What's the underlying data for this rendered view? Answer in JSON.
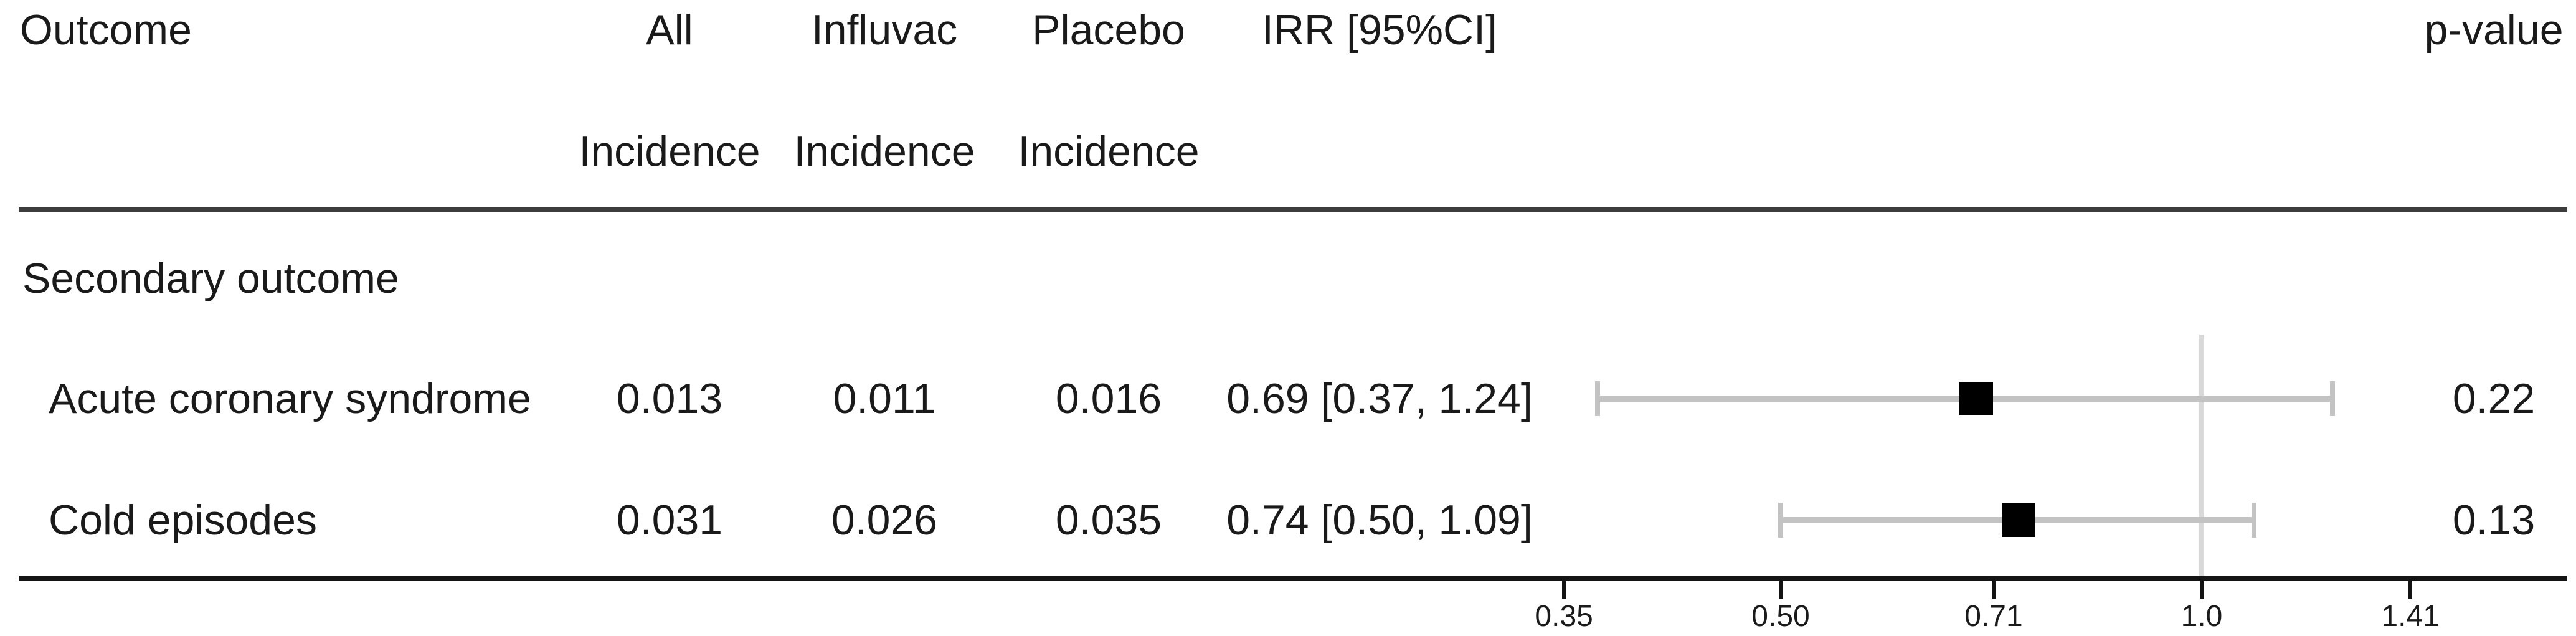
{
  "header": {
    "col_outcome": "Outcome",
    "col_all": "All",
    "col_influvac": "Influvac",
    "col_placebo": "Placebo",
    "col_incidence": "Incidence",
    "col_irr": "IRR [95%CI]",
    "col_pvalue": "p-value"
  },
  "group_label": "Secondary outcome",
  "rows": [
    {
      "outcome": "Acute coronary syndrome",
      "all_incidence": "0.013",
      "influvac_incidence": "0.011",
      "placebo_incidence": "0.016",
      "irr_label": "0.69 [0.37, 1.24]",
      "p_value": "0.22"
    },
    {
      "outcome": "Cold episodes",
      "all_incidence": "0.031",
      "influvac_incidence": "0.026",
      "placebo_incidence": "0.035",
      "irr_label": "0.74 [0.50, 1.09]",
      "p_value": "0.13"
    }
  ],
  "chart_data": {
    "type": "scatter",
    "subtype": "forest-plot",
    "x_scale": "log2",
    "x_ticks": [
      0.35,
      0.5,
      0.71,
      1.0,
      1.41
    ],
    "x_tick_labels": [
      "0.35",
      "0.50",
      "0.71",
      "1.0",
      "1.41"
    ],
    "reference_line": 1.0,
    "series": [
      {
        "name": "Acute coronary syndrome",
        "est": 0.69,
        "lo": 0.37,
        "hi": 1.24
      },
      {
        "name": "Cold episodes",
        "est": 0.74,
        "lo": 0.5,
        "hi": 1.09
      }
    ],
    "title": "",
    "xlabel": "",
    "ylabel": "",
    "legend": false,
    "grid": false
  },
  "colors": {
    "marker": "#000000",
    "ci_bar": "#c3c3c3",
    "reference_line": "#d9d9d9",
    "rule_top": "#3d3d3d",
    "rule_bottom": "#141414",
    "text": "#1a1a1a"
  }
}
